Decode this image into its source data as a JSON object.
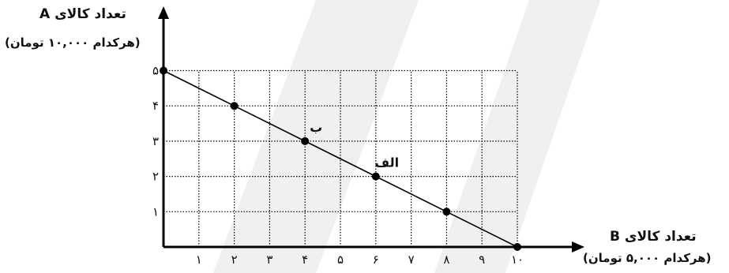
{
  "chart_data": {
    "type": "line",
    "ylabel": "تعداد کالای A",
    "ylabel_sub": "(هرکدام ۱۰,۰۰۰ تومان)",
    "xlabel": "تعداد کالای B",
    "xlabel_sub": "(هرکدام ۵,۰۰۰ تومان)",
    "xlim": [
      0,
      10
    ],
    "ylim": [
      0,
      5
    ],
    "x_ticks": [
      "۱",
      "۲",
      "۳",
      "۴",
      "۵",
      "۶",
      "۷",
      "۸",
      "۹",
      "۱۰"
    ],
    "y_ticks": [
      "۱",
      "۲",
      "۳",
      "۴",
      "۵"
    ],
    "grid": true,
    "series": [
      {
        "x": [
          0,
          2,
          4,
          6,
          8,
          10
        ],
        "y": [
          5,
          4,
          3,
          2,
          1,
          0
        ],
        "color": "#000000"
      }
    ],
    "annotations": [
      {
        "text": "ب",
        "x": 4,
        "y": 3
      },
      {
        "text": "الف",
        "x": 6,
        "y": 2
      }
    ]
  }
}
